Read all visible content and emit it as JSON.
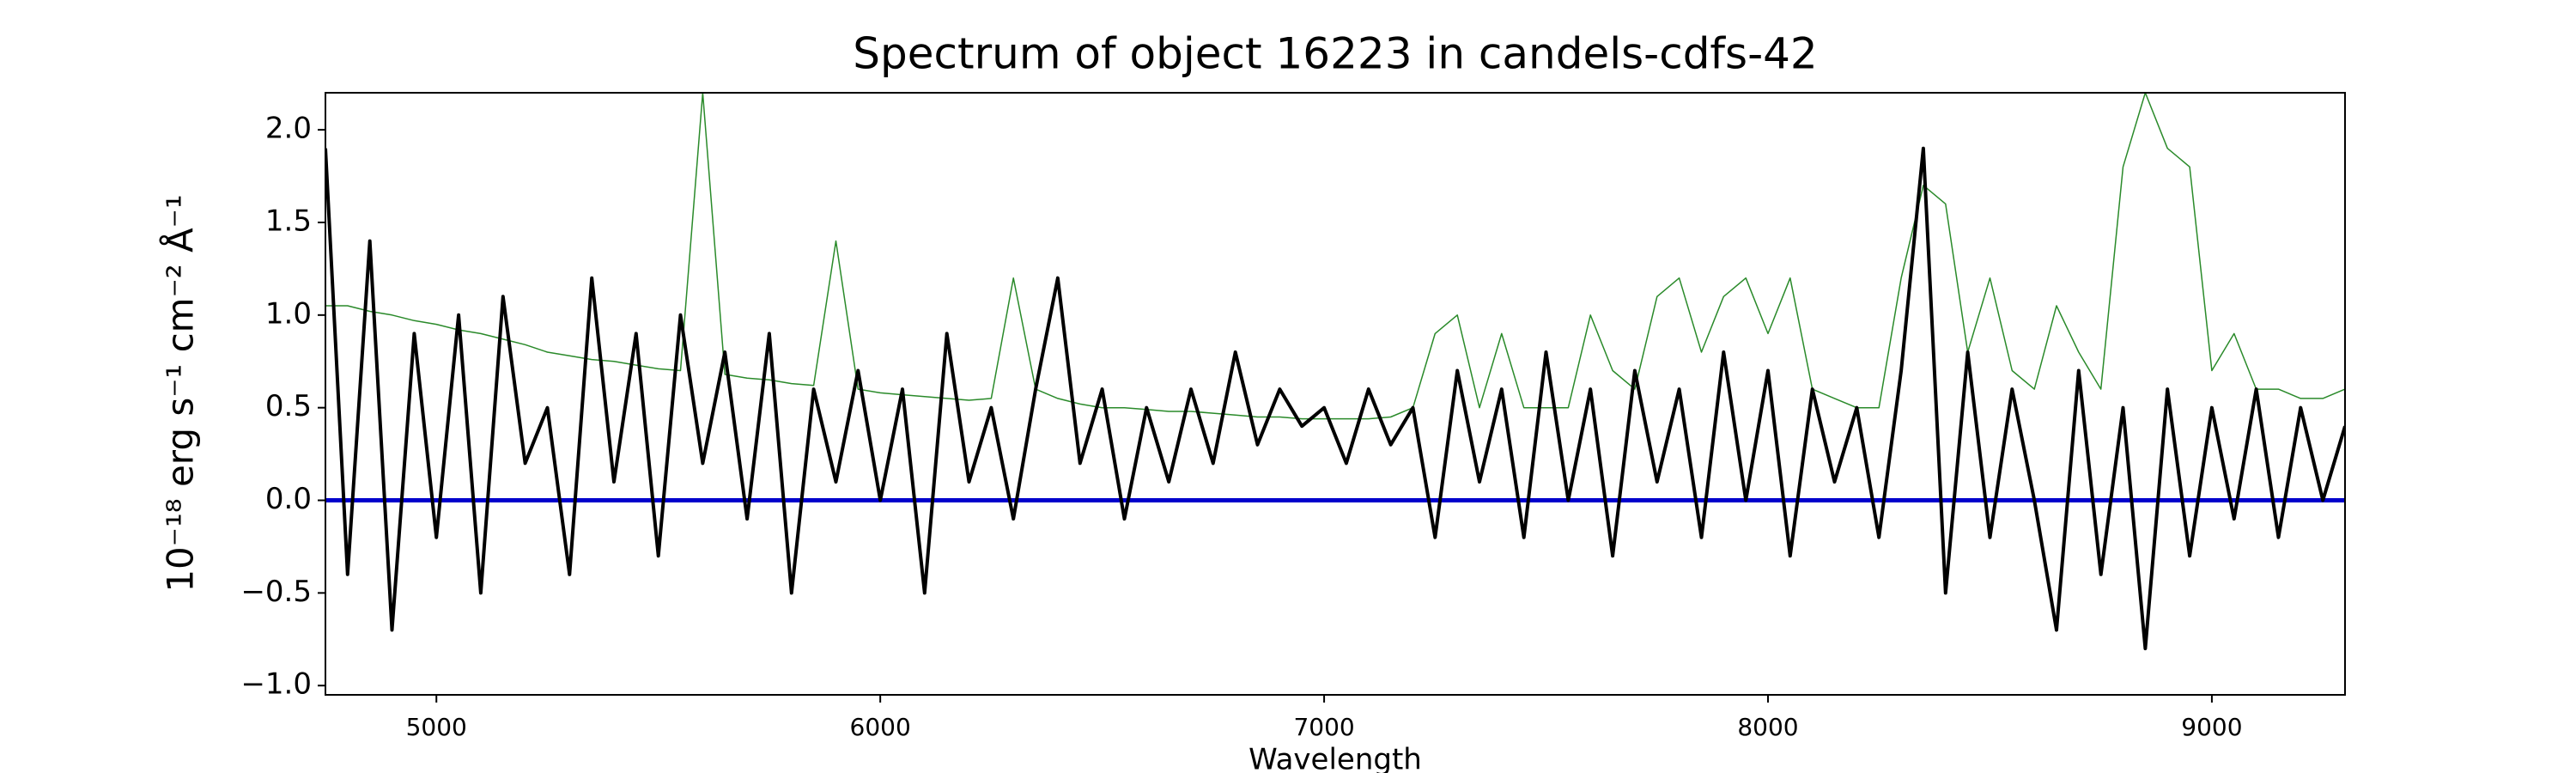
{
  "chart_data": {
    "type": "line",
    "title": "Spectrum of object 16223 in candels-cdfs-42",
    "xlabel": "Wavelength",
    "ylabel": "10⁻¹⁸ erg s⁻¹ cm⁻² Å⁻¹",
    "x": [
      4750,
      4800,
      4850,
      4900,
      4950,
      5000,
      5050,
      5100,
      5150,
      5200,
      5250,
      5300,
      5350,
      5400,
      5450,
      5500,
      5550,
      5600,
      5650,
      5700,
      5750,
      5800,
      5850,
      5900,
      5950,
      6000,
      6050,
      6100,
      6150,
      6200,
      6250,
      6300,
      6350,
      6400,
      6450,
      6500,
      6550,
      6600,
      6650,
      6700,
      6750,
      6800,
      6850,
      6900,
      6950,
      7000,
      7050,
      7100,
      7150,
      7200,
      7250,
      7300,
      7350,
      7400,
      7450,
      7500,
      7550,
      7600,
      7650,
      7700,
      7750,
      7800,
      7850,
      7900,
      7950,
      8000,
      8050,
      8100,
      8150,
      8200,
      8250,
      8300,
      8350,
      8400,
      8450,
      8500,
      8550,
      8600,
      8650,
      8700,
      8750,
      8800,
      8850,
      8900,
      8950,
      9000,
      9050,
      9100,
      9150,
      9200,
      9250,
      9300
    ],
    "series": [
      {
        "color": "#2a8a2a",
        "width": 1.5,
        "values": [
          1.05,
          1.05,
          1.02,
          1.0,
          0.97,
          0.95,
          0.92,
          0.9,
          0.87,
          0.84,
          0.8,
          0.78,
          0.76,
          0.75,
          0.73,
          0.71,
          0.7,
          2.2,
          0.68,
          0.66,
          0.65,
          0.63,
          0.62,
          1.4,
          0.6,
          0.58,
          0.57,
          0.56,
          0.55,
          0.54,
          0.55,
          1.2,
          0.6,
          0.55,
          0.52,
          0.5,
          0.5,
          0.49,
          0.48,
          0.48,
          0.47,
          0.46,
          0.45,
          0.45,
          0.44,
          0.44,
          0.44,
          0.44,
          0.45,
          0.5,
          0.9,
          1.0,
          0.5,
          0.9,
          0.5,
          0.5,
          0.5,
          1.0,
          0.7,
          0.6,
          1.1,
          1.2,
          0.8,
          1.1,
          1.2,
          0.9,
          1.2,
          0.6,
          0.55,
          0.5,
          0.5,
          1.2,
          1.7,
          1.6,
          0.8,
          1.2,
          0.7,
          0.6,
          1.05,
          0.8,
          0.6,
          1.8,
          2.2,
          1.9,
          1.8,
          0.7,
          0.9,
          0.6,
          0.6,
          0.55,
          0.55,
          0.6
        ]
      },
      {
        "color": "#000000",
        "width": 4,
        "values": [
          1.9,
          -0.4,
          1.4,
          -0.7,
          0.9,
          -0.2,
          1.0,
          -0.5,
          1.1,
          0.2,
          0.5,
          -0.4,
          1.2,
          0.1,
          0.9,
          -0.3,
          1.0,
          0.2,
          0.8,
          -0.1,
          0.9,
          -0.5,
          0.6,
          0.1,
          0.7,
          0.0,
          0.6,
          -0.5,
          0.9,
          0.1,
          0.5,
          -0.1,
          0.6,
          1.2,
          0.2,
          0.6,
          -0.1,
          0.5,
          0.1,
          0.6,
          0.2,
          0.8,
          0.3,
          0.6,
          0.4,
          0.5,
          0.2,
          0.6,
          0.3,
          0.5,
          -0.2,
          0.7,
          0.1,
          0.6,
          -0.2,
          0.8,
          0.0,
          0.6,
          -0.3,
          0.7,
          0.1,
          0.6,
          -0.2,
          0.8,
          0.0,
          0.7,
          -0.3,
          0.6,
          0.1,
          0.5,
          -0.2,
          0.7,
          1.9,
          -0.5,
          0.8,
          -0.2,
          0.6,
          0.0,
          -0.7,
          0.7,
          -0.4,
          0.5,
          -0.8,
          0.6,
          -0.3,
          0.5,
          -0.1,
          0.6,
          -0.2,
          0.5,
          0.0,
          0.4
        ]
      }
    ],
    "hlines": [
      {
        "value": 0,
        "color": "#0000cc"
      }
    ],
    "xlim": [
      4750,
      9300
    ],
    "xticks": [
      5000,
      6000,
      7000,
      8000,
      9000
    ],
    "ylim": [
      -1.05,
      2.2
    ],
    "yticks": [
      {
        "value": -1,
        "label": "−1.0"
      },
      {
        "value": -0.5,
        "label": "−0.5"
      },
      {
        "value": 0,
        "label": "0.0"
      },
      {
        "value": 0.5,
        "label": "0.5"
      },
      {
        "value": 1,
        "label": "1.0"
      },
      {
        "value": 1.5,
        "label": "1.5"
      },
      {
        "value": 2,
        "label": "2.0"
      }
    ]
  }
}
